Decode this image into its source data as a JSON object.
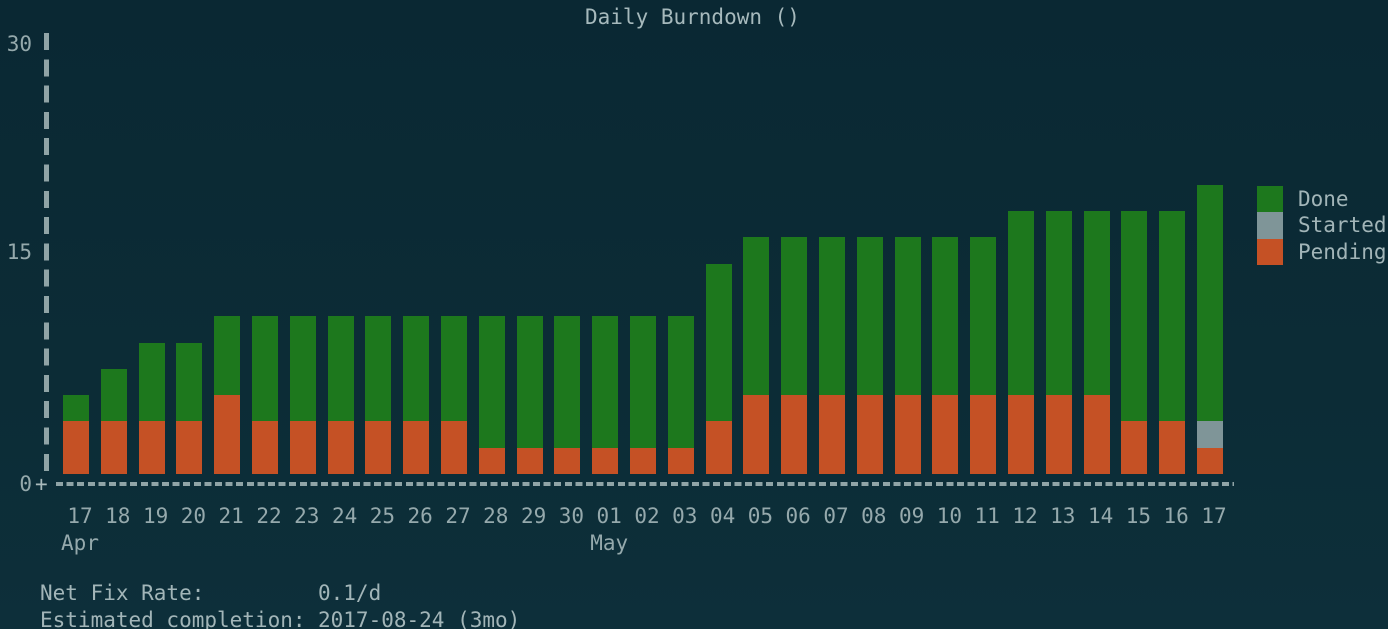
{
  "title": "Daily Burndown ()",
  "y_axis": {
    "top": "30",
    "mid": "15",
    "zero": "0",
    "origin_marker": "+"
  },
  "legend": [
    {
      "label": "Done",
      "color": "#1d781d"
    },
    {
      "label": "Started",
      "color": "#7f9598"
    },
    {
      "label": "Pending",
      "color": "#c55125"
    }
  ],
  "stats": [
    {
      "label": "Net Fix Rate:",
      "value": "0.1/d"
    },
    {
      "label": "Estimated completion:",
      "value": "2017-08-24 (3mo)"
    }
  ],
  "colors": {
    "background": "#0b2a34",
    "done": "#1d781d",
    "started": "#7f9598",
    "pending": "#c55125",
    "text": "#a2b5b8",
    "axis": "#9fb1b3"
  },
  "chart_data": {
    "type": "bar",
    "stacked": true,
    "title": "Daily Burndown ()",
    "xlabel": "",
    "ylabel": "",
    "ylim": [
      0,
      30
    ],
    "y_ticks": [
      0,
      15,
      30
    ],
    "grid": false,
    "legend_position": "right",
    "categories": [
      "17",
      "18",
      "19",
      "20",
      "21",
      "22",
      "23",
      "24",
      "25",
      "26",
      "27",
      "28",
      "29",
      "30",
      "01",
      "02",
      "03",
      "04",
      "05",
      "06",
      "07",
      "08",
      "09",
      "10",
      "11",
      "12",
      "13",
      "14",
      "15",
      "16",
      "17"
    ],
    "months": [
      {
        "label": "Apr",
        "index": 0
      },
      {
        "label": "May",
        "index": 14
      }
    ],
    "series": [
      {
        "name": "Done",
        "color": "#1d781d",
        "values": [
          2,
          3,
          5,
          5,
          6,
          7,
          7,
          7,
          7,
          7,
          7,
          9,
          9,
          9,
          9,
          9,
          9,
          10,
          11,
          11,
          11,
          11,
          11,
          11,
          11,
          13,
          13,
          13,
          14,
          14,
          16
        ]
      },
      {
        "name": "Started",
        "color": "#7f9598",
        "values": [
          0,
          0,
          0,
          0,
          0,
          0,
          0,
          0,
          0,
          0,
          0,
          0,
          0,
          0,
          0,
          0,
          0,
          0,
          0,
          0,
          0,
          0,
          0,
          0,
          0,
          0,
          0,
          0,
          0,
          0,
          2
        ]
      },
      {
        "name": "Pending",
        "color": "#c55125",
        "values": [
          4,
          4,
          4,
          4,
          5,
          4,
          4,
          4,
          4,
          4,
          4,
          2,
          2,
          2,
          2,
          2,
          2,
          4,
          5,
          5,
          5,
          5,
          5,
          5,
          5,
          5,
          5,
          5,
          4,
          4,
          2
        ]
      }
    ]
  }
}
